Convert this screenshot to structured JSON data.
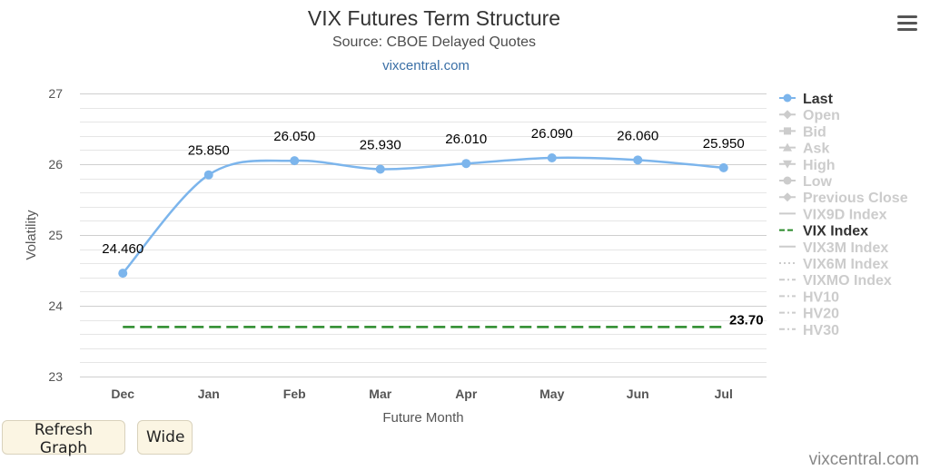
{
  "header": {
    "title": "VIX Futures Term Structure",
    "subtitle": "Source: CBOE Delayed Quotes",
    "link": "vixcentral.com"
  },
  "menu_icon": "hamburger-menu-icon",
  "buttons": {
    "refresh": "Refresh Graph",
    "wide": "Wide"
  },
  "credit": "vixcentral.com",
  "chart_data": {
    "type": "line",
    "title": "VIX Futures Term Structure",
    "subtitle": "Source: CBOE Delayed Quotes",
    "xlabel": "Future Month",
    "ylabel": "Volatility",
    "ylim": [
      23,
      27
    ],
    "yticks": [
      "23",
      "24",
      "25",
      "26",
      "27"
    ],
    "categories": [
      "Dec",
      "Jan",
      "Feb",
      "Mar",
      "Apr",
      "May",
      "Jun",
      "Jul"
    ],
    "series": [
      {
        "name": "Last",
        "values": [
          24.46,
          25.85,
          26.05,
          25.93,
          26.01,
          26.09,
          26.06,
          25.95
        ],
        "labels": [
          "24.460",
          "25.850",
          "26.050",
          "25.930",
          "26.010",
          "26.090",
          "26.060",
          "25.950"
        ],
        "color": "#7cb5ec",
        "visible": true
      },
      {
        "name": "VIX Index",
        "values": [
          23.7,
          23.7,
          23.7,
          23.7,
          23.7,
          23.7,
          23.7,
          23.7
        ],
        "end_label": "23.70",
        "color": "#2a8a2a",
        "dashed": true,
        "visible": true
      }
    ],
    "grid": true,
    "legend_position": "right",
    "legend": [
      {
        "name": "Last",
        "symbol": "circle",
        "active": true
      },
      {
        "name": "Open",
        "symbol": "diamond",
        "active": false
      },
      {
        "name": "Bid",
        "symbol": "square",
        "active": false
      },
      {
        "name": "Ask",
        "symbol": "triangle",
        "active": false
      },
      {
        "name": "High",
        "symbol": "triangle-down",
        "active": false
      },
      {
        "name": "Low",
        "symbol": "circle",
        "active": false
      },
      {
        "name": "Previous Close",
        "symbol": "diamond",
        "active": false
      },
      {
        "name": "VIX9D Index",
        "symbol": "line",
        "active": false
      },
      {
        "name": "VIX Index",
        "symbol": "dash",
        "active": true
      },
      {
        "name": "VIX3M Index",
        "symbol": "line",
        "active": false
      },
      {
        "name": "VIX6M Index",
        "symbol": "dot",
        "active": false
      },
      {
        "name": "VIXMO Index",
        "symbol": "dashdot",
        "active": false
      },
      {
        "name": "HV10",
        "symbol": "dashdot",
        "active": false
      },
      {
        "name": "HV20",
        "symbol": "dashdot",
        "active": false
      },
      {
        "name": "HV30",
        "symbol": "dashdot",
        "active": false
      }
    ],
    "colors": {
      "grid": "#d8d8d8",
      "legend_active": "#333333",
      "legend_inactive": "#cccccc"
    }
  }
}
